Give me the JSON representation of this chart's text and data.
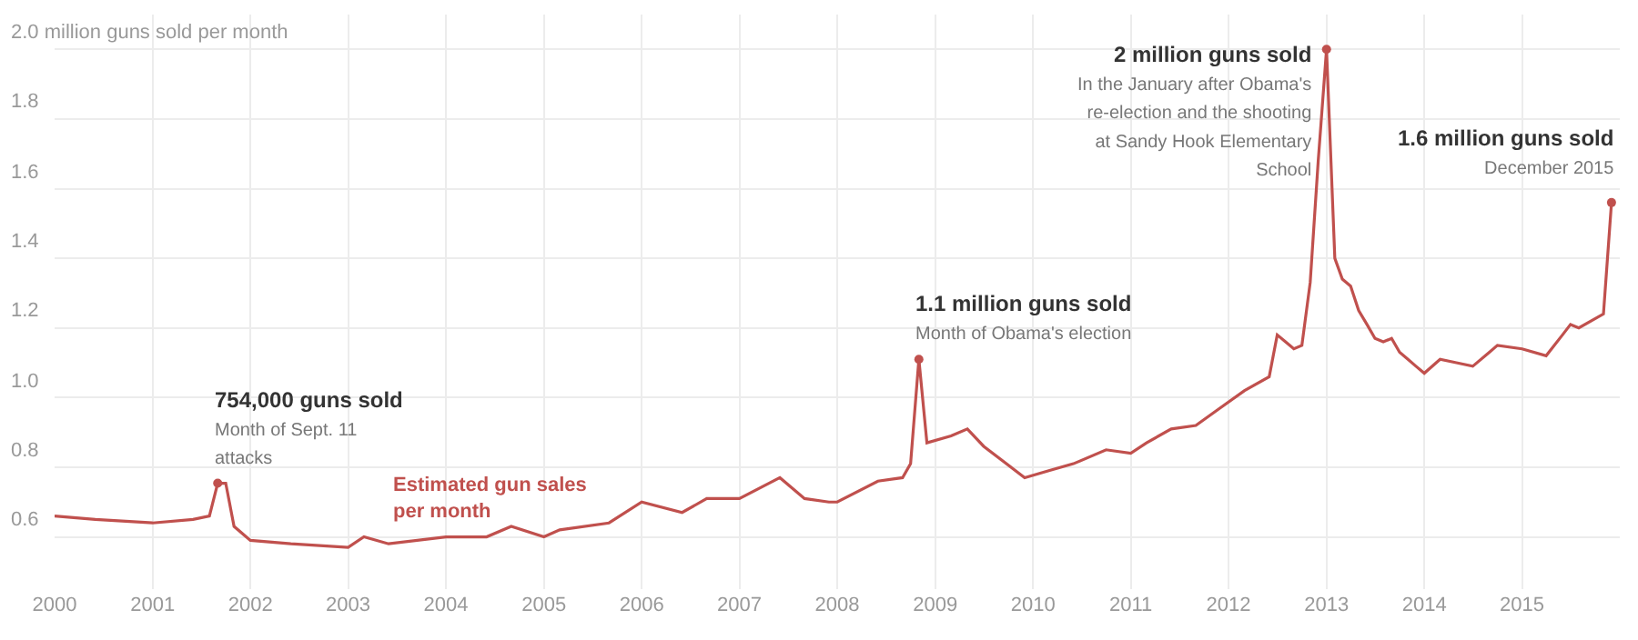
{
  "chart_data": {
    "type": "line",
    "x": [
      "2000-01",
      "2000-06",
      "2001-01",
      "2001-06",
      "2001-08",
      "2001-09",
      "2001-10",
      "2001-11",
      "2002-01",
      "2002-06",
      "2003-01",
      "2003-03",
      "2003-06",
      "2004-01",
      "2004-06",
      "2004-09",
      "2005-01",
      "2005-03",
      "2005-09",
      "2006-01",
      "2006-06",
      "2006-09",
      "2007-01",
      "2007-06",
      "2007-09",
      "2007-12",
      "2008-01",
      "2008-06",
      "2008-09",
      "2008-10",
      "2008-11",
      "2008-12",
      "2009-03",
      "2009-05",
      "2009-07",
      "2009-12",
      "2010-03",
      "2010-06",
      "2010-10",
      "2011-01",
      "2011-03",
      "2011-06",
      "2011-09",
      "2011-12",
      "2012-03",
      "2012-06",
      "2012-07",
      "2012-08",
      "2012-09",
      "2012-10",
      "2012-11",
      "2012-12",
      "2013-01",
      "2013-02",
      "2013-03",
      "2013-04",
      "2013-05",
      "2013-06",
      "2013-07",
      "2013-08",
      "2013-09",
      "2013-10",
      "2013-11",
      "2013-12",
      "2014-01",
      "2014-03",
      "2014-05",
      "2014-07",
      "2014-09",
      "2014-10",
      "2015-01",
      "2015-04",
      "2015-06",
      "2015-07",
      "2015-08",
      "2015-11",
      "2015-12"
    ],
    "series": [
      {
        "name": "Estimated gun sales per month",
        "color": "#c0504d",
        "values": [
          0.66,
          0.65,
          0.64,
          0.65,
          0.66,
          0.754,
          0.754,
          0.63,
          0.59,
          0.58,
          0.57,
          0.6,
          0.58,
          0.6,
          0.6,
          0.63,
          0.6,
          0.62,
          0.64,
          0.7,
          0.67,
          0.71,
          0.71,
          0.77,
          0.71,
          0.7,
          0.7,
          0.76,
          0.77,
          0.81,
          1.11,
          0.87,
          0.89,
          0.91,
          0.86,
          0.77,
          0.79,
          0.81,
          0.85,
          0.84,
          0.87,
          0.91,
          0.92,
          0.97,
          1.02,
          1.06,
          1.18,
          1.16,
          1.14,
          1.15,
          1.33,
          1.68,
          2.0,
          1.4,
          1.34,
          1.32,
          1.25,
          1.21,
          1.17,
          1.16,
          1.17,
          1.13,
          1.11,
          1.09,
          1.07,
          1.11,
          1.1,
          1.09,
          1.13,
          1.15,
          1.14,
          1.12,
          1.18,
          1.21,
          1.2,
          1.24,
          1.56
        ]
      }
    ],
    "xlim": [
      "2000-01",
      "2016-01"
    ],
    "xticks": [
      {
        "value": "2000-01",
        "label": "2000"
      },
      {
        "value": "2001-01",
        "label": "2001"
      },
      {
        "value": "2002-01",
        "label": "2002"
      },
      {
        "value": "2003-01",
        "label": "2003"
      },
      {
        "value": "2004-01",
        "label": "2004"
      },
      {
        "value": "2005-01",
        "label": "2005"
      },
      {
        "value": "2006-01",
        "label": "2006"
      },
      {
        "value": "2007-01",
        "label": "2007"
      },
      {
        "value": "2008-01",
        "label": "2008"
      },
      {
        "value": "2009-01",
        "label": "2009"
      },
      {
        "value": "2010-01",
        "label": "2010"
      },
      {
        "value": "2011-01",
        "label": "2011"
      },
      {
        "value": "2012-01",
        "label": "2012"
      },
      {
        "value": "2013-01",
        "label": "2013"
      },
      {
        "value": "2014-01",
        "label": "2014"
      },
      {
        "value": "2015-01",
        "label": "2015"
      }
    ],
    "ylim": [
      0.45,
      2.1
    ],
    "yticks": [
      0.6,
      0.8,
      {
        "value": 1.0,
        "label": "1.0"
      },
      1.2,
      1.4,
      1.6,
      1.8,
      {
        "value": 2.0,
        "label": "2.0 million guns sold per month"
      }
    ],
    "grid": true,
    "annotations": [
      {
        "text": "754,000 guns sold\nMonth of Sept. 11\nattacks",
        "x": "2001-09",
        "y": 0.754
      },
      {
        "text": "1.1 million guns sold\nMonth of Obama's election",
        "x": "2008-11",
        "y": 1.11
      },
      {
        "text": "2 million guns sold\nIn the January after Obama's\nre-election and the shooting\nat Sandy Hook Elementary\nSchool",
        "x": "2013-01",
        "y": 2.0
      },
      {
        "text": "1.6 million guns sold\nDecember 2015",
        "x": "2015-12",
        "y": 1.56
      }
    ]
  }
}
